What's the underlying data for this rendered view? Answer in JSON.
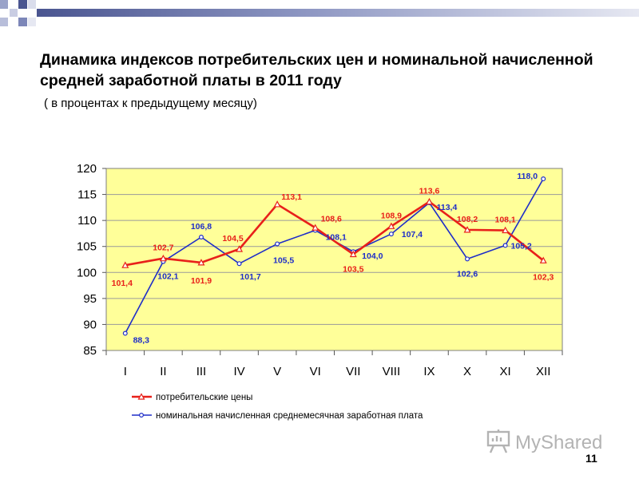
{
  "header": {
    "title": "Динамика индексов потребительских цен и номинальной начисленной средней заработной платы в 2011 году",
    "subtitle": "( в процентах к предыдущему месяцу)"
  },
  "footer": {
    "page_number": "11",
    "watermark": "MyShared"
  },
  "colors": {
    "plot_bg": "#FFFF99",
    "cpi": "#E8201A",
    "wage": "#1E2DC8",
    "deco_square": "#9AA3C9",
    "deco_bar": "#4A5590"
  },
  "chart_data": {
    "type": "line",
    "categories": [
      "I",
      "II",
      "III",
      "IV",
      "V",
      "VI",
      "VII",
      "VIII",
      "IX",
      "X",
      "XI",
      "XII"
    ],
    "ylim": [
      85,
      120
    ],
    "yticks": [
      85,
      90,
      95,
      100,
      105,
      110,
      115,
      120
    ],
    "grid": true,
    "legend_position": "bottom-left",
    "series": [
      {
        "name": "потребительские цены",
        "color": "#E8201A",
        "marker": "triangle",
        "values": [
          101.4,
          102.7,
          101.9,
          104.5,
          113.1,
          108.6,
          103.5,
          108.9,
          113.6,
          108.2,
          108.1,
          102.3
        ],
        "labels": [
          "101,4",
          "102,7",
          "101,9",
          "104,5",
          "113,1",
          "108,6",
          "103,5",
          "108,9",
          "113,6",
          "108,2",
          "108,1",
          "102,3"
        ]
      },
      {
        "name": "номинальная начисленная среднемесячная заработная плата",
        "color": "#1E2DC8",
        "marker": "circle",
        "values": [
          88.3,
          102.1,
          106.8,
          101.7,
          105.5,
          108.1,
          104.0,
          107.4,
          113.4,
          102.6,
          105.2,
          118.0
        ],
        "labels": [
          "88,3",
          "102,1",
          "106,8",
          "101,7",
          "105,5",
          "108,1",
          "104,0",
          "107,4",
          "113,4",
          "102,6",
          "105,2",
          "118,0"
        ]
      }
    ]
  }
}
